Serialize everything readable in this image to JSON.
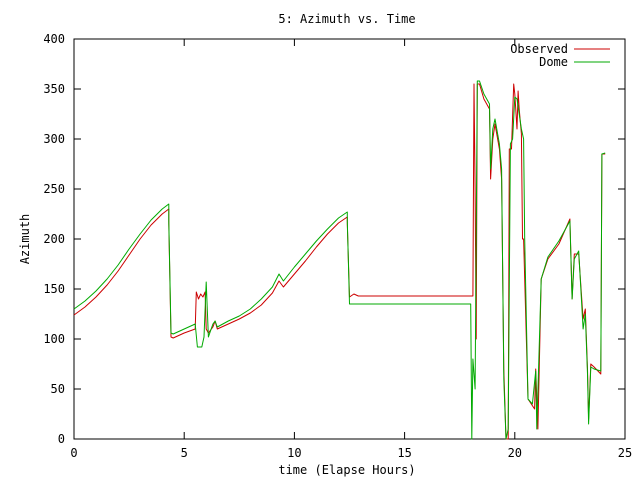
{
  "chart_data": {
    "type": "line",
    "title": "5: Azimuth vs. Time",
    "xlabel": "time (Elapse Hours)",
    "ylabel": "Azimuth",
    "xlim": [
      0,
      25
    ],
    "ylim": [
      0,
      400
    ],
    "xticks": [
      "0",
      "5",
      "10",
      "15",
      "20",
      "25"
    ],
    "yticks": [
      "0",
      "50",
      "100",
      "150",
      "200",
      "250",
      "300",
      "350",
      "400"
    ],
    "grid": false,
    "legend_position": "top-right",
    "series": [
      {
        "name": "Observed",
        "color": "#cc0000",
        "points": [
          [
            0,
            124
          ],
          [
            0.5,
            132
          ],
          [
            1,
            142
          ],
          [
            1.5,
            154
          ],
          [
            2,
            168
          ],
          [
            2.5,
            184
          ],
          [
            3,
            200
          ],
          [
            3.5,
            214
          ],
          [
            4,
            225
          ],
          [
            4.3,
            230
          ],
          [
            4.3,
            215
          ],
          [
            4.4,
            102
          ],
          [
            4.5,
            101
          ],
          [
            5,
            106
          ],
          [
            5.5,
            110
          ],
          [
            5.55,
            147
          ],
          [
            5.65,
            140
          ],
          [
            5.75,
            145
          ],
          [
            5.85,
            142
          ],
          [
            5.95,
            147
          ],
          [
            6,
            110
          ],
          [
            6.1,
            106
          ],
          [
            6.3,
            112
          ],
          [
            6.4,
            118
          ],
          [
            6.5,
            110
          ],
          [
            7,
            115
          ],
          [
            7.5,
            120
          ],
          [
            8,
            126
          ],
          [
            8.5,
            134
          ],
          [
            9,
            146
          ],
          [
            9.3,
            158
          ],
          [
            9.5,
            152
          ],
          [
            10,
            165
          ],
          [
            10.5,
            178
          ],
          [
            11,
            192
          ],
          [
            11.5,
            205
          ],
          [
            12,
            216
          ],
          [
            12.4,
            222
          ],
          [
            12.4,
            215
          ],
          [
            12.5,
            142
          ],
          [
            12.7,
            145
          ],
          [
            12.9,
            143
          ],
          [
            14,
            143
          ],
          [
            16,
            143
          ],
          [
            18.1,
            143
          ],
          [
            18.15,
            355
          ],
          [
            18.2,
            250
          ],
          [
            18.25,
            100
          ],
          [
            18.3,
            355
          ],
          [
            18.4,
            355
          ],
          [
            18.6,
            340
          ],
          [
            18.85,
            330
          ],
          [
            18.9,
            260
          ],
          [
            19,
            300
          ],
          [
            19.1,
            315
          ],
          [
            19.3,
            290
          ],
          [
            19.4,
            260
          ],
          [
            19.5,
            70
          ],
          [
            19.6,
            0
          ],
          [
            19.7,
            0
          ],
          [
            19.75,
            290
          ],
          [
            19.85,
            290
          ],
          [
            19.95,
            355
          ],
          [
            20,
            345
          ],
          [
            20.1,
            310
          ],
          [
            20.15,
            348
          ],
          [
            20.2,
            330
          ],
          [
            20.3,
            305
          ],
          [
            20.35,
            200
          ],
          [
            20.4,
            200
          ],
          [
            20.6,
            40
          ],
          [
            20.9,
            30
          ],
          [
            20.95,
            70
          ],
          [
            21.05,
            10
          ],
          [
            21.2,
            160
          ],
          [
            21.5,
            180
          ],
          [
            22,
            195
          ],
          [
            22.5,
            220
          ],
          [
            22.6,
            140
          ],
          [
            22.7,
            185
          ],
          [
            22.9,
            185
          ],
          [
            23.1,
            120
          ],
          [
            23.2,
            130
          ],
          [
            23.3,
            70
          ],
          [
            23.35,
            20
          ],
          [
            23.45,
            75
          ],
          [
            23.6,
            72
          ],
          [
            23.9,
            65
          ],
          [
            23.95,
            285
          ],
          [
            24.1,
            285
          ]
        ]
      },
      {
        "name": "Dome",
        "color": "#00aa00",
        "points": [
          [
            0,
            130
          ],
          [
            0.5,
            138
          ],
          [
            1,
            148
          ],
          [
            1.5,
            160
          ],
          [
            2,
            174
          ],
          [
            2.5,
            190
          ],
          [
            3,
            205
          ],
          [
            3.5,
            219
          ],
          [
            4,
            230
          ],
          [
            4.3,
            235
          ],
          [
            4.3,
            218
          ],
          [
            4.4,
            106
          ],
          [
            4.5,
            105
          ],
          [
            5,
            110
          ],
          [
            5.5,
            115
          ],
          [
            5.6,
            92
          ],
          [
            5.8,
            92
          ],
          [
            5.9,
            102
          ],
          [
            6,
            157
          ],
          [
            6.1,
            102
          ],
          [
            6.3,
            115
          ],
          [
            6.4,
            118
          ],
          [
            6.5,
            112
          ],
          [
            7,
            118
          ],
          [
            7.5,
            123
          ],
          [
            8,
            130
          ],
          [
            8.5,
            140
          ],
          [
            9,
            152
          ],
          [
            9.3,
            165
          ],
          [
            9.5,
            158
          ],
          [
            10,
            172
          ],
          [
            10.5,
            185
          ],
          [
            11,
            198
          ],
          [
            11.5,
            210
          ],
          [
            12,
            221
          ],
          [
            12.4,
            227
          ],
          [
            12.4,
            218
          ],
          [
            12.5,
            135
          ],
          [
            14,
            135
          ],
          [
            16,
            135
          ],
          [
            18,
            135
          ],
          [
            18.05,
            0
          ],
          [
            18.1,
            80
          ],
          [
            18.2,
            50
          ],
          [
            18.3,
            358
          ],
          [
            18.4,
            358
          ],
          [
            18.6,
            345
          ],
          [
            18.85,
            335
          ],
          [
            18.9,
            270
          ],
          [
            19,
            310
          ],
          [
            19.1,
            320
          ],
          [
            19.3,
            295
          ],
          [
            19.4,
            270
          ],
          [
            19.5,
            60
          ],
          [
            19.6,
            0
          ],
          [
            19.7,
            10
          ],
          [
            19.8,
            295
          ],
          [
            19.9,
            300
          ],
          [
            20,
            342
          ],
          [
            20.1,
            340
          ],
          [
            20.2,
            325
          ],
          [
            20.3,
            310
          ],
          [
            20.4,
            300
          ],
          [
            20.45,
            200
          ],
          [
            20.6,
            40
          ],
          [
            20.8,
            35
          ],
          [
            20.95,
            68
          ],
          [
            21,
            10
          ],
          [
            21.2,
            160
          ],
          [
            21.5,
            182
          ],
          [
            22,
            198
          ],
          [
            22.5,
            218
          ],
          [
            22.6,
            140
          ],
          [
            22.7,
            180
          ],
          [
            22.9,
            188
          ],
          [
            23.1,
            110
          ],
          [
            23.2,
            125
          ],
          [
            23.3,
            65
          ],
          [
            23.35,
            15
          ],
          [
            23.45,
            72
          ],
          [
            23.6,
            70
          ],
          [
            23.9,
            68
          ],
          [
            23.95,
            285
          ],
          [
            24.1,
            286
          ]
        ]
      }
    ]
  }
}
